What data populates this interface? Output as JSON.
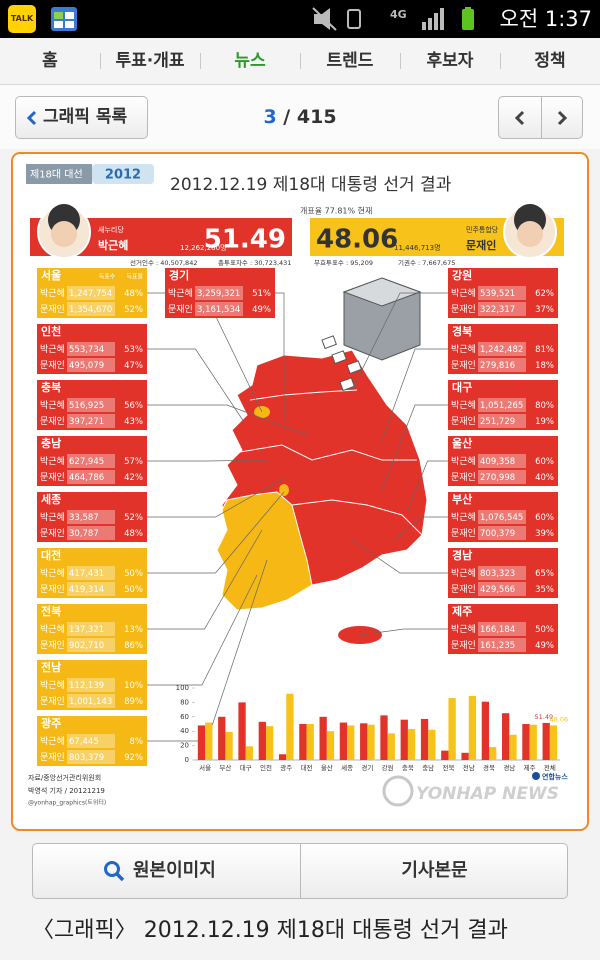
{
  "status_bar": {
    "app_icon": "TALK",
    "network": "4G",
    "time": "오전 1:37"
  },
  "tabs": [
    "홈",
    "투표·개표",
    "뉴스",
    "트렌드",
    "후보자",
    "정책"
  ],
  "active_tab": 2,
  "nav": {
    "back": "그래픽 목록",
    "current": 3,
    "separator": "/",
    "total": 415
  },
  "infographic": {
    "tag": "제18대 대선",
    "logo": "2012",
    "title": "2012.12.19 제18대 대통령 선거 결과",
    "count_rate": "개표율 77.81% 현재",
    "left_candidate": {
      "party": "새누리당",
      "name": "박근혜",
      "votes": "12,262,280명",
      "percent": "51.49",
      "color": "#e2332a"
    },
    "right_candidate": {
      "party": "민주통합당",
      "name": "문재인",
      "votes": "11,446,713명",
      "percent": "48.06",
      "color": "#f7c21a"
    },
    "stats": [
      "선거인수 : 40,507,842",
      "총투표자수 : 30,723,431",
      "무효투표수 : 95,209",
      "기권수 : 7,667,675"
    ],
    "column_heads": [
      "득표수",
      "득표율"
    ],
    "regions": [
      {
        "name": "서울",
        "color": "#f5b814",
        "rows": [
          {
            "candidate": "박근혜",
            "votes": "1,247,754",
            "pct": "48%"
          },
          {
            "candidate": "문재인",
            "votes": "1,354,670",
            "pct": "52%"
          }
        ]
      },
      {
        "name": "인천",
        "color": "#e2332a",
        "rows": [
          {
            "candidate": "박근혜",
            "votes": "553,734",
            "pct": "53%"
          },
          {
            "candidate": "문재인",
            "votes": "495,079",
            "pct": "47%"
          }
        ]
      },
      {
        "name": "충북",
        "color": "#e2332a",
        "rows": [
          {
            "candidate": "박근혜",
            "votes": "516,925",
            "pct": "56%"
          },
          {
            "candidate": "문재인",
            "votes": "397,271",
            "pct": "43%"
          }
        ]
      },
      {
        "name": "충남",
        "color": "#e2332a",
        "rows": [
          {
            "candidate": "박근혜",
            "votes": "627,945",
            "pct": "57%"
          },
          {
            "candidate": "문재인",
            "votes": "464,786",
            "pct": "42%"
          }
        ]
      },
      {
        "name": "세종",
        "color": "#e2332a",
        "rows": [
          {
            "candidate": "박근혜",
            "votes": "33,587",
            "pct": "52%"
          },
          {
            "candidate": "문재인",
            "votes": "30,787",
            "pct": "48%"
          }
        ]
      },
      {
        "name": "대전",
        "color": "#f5b814",
        "rows": [
          {
            "candidate": "박근혜",
            "votes": "417,431",
            "pct": "50%"
          },
          {
            "candidate": "문재인",
            "votes": "419,314",
            "pct": "50%"
          }
        ]
      },
      {
        "name": "전북",
        "color": "#f5b814",
        "rows": [
          {
            "candidate": "박근혜",
            "votes": "137,321",
            "pct": "13%"
          },
          {
            "candidate": "문재인",
            "votes": "902,710",
            "pct": "86%"
          }
        ]
      },
      {
        "name": "전남",
        "color": "#f5b814",
        "rows": [
          {
            "candidate": "박근혜",
            "votes": "112,139",
            "pct": "10%"
          },
          {
            "candidate": "문재인",
            "votes": "1,001,143",
            "pct": "89%"
          }
        ]
      },
      {
        "name": "광주",
        "color": "#f5b814",
        "rows": [
          {
            "candidate": "박근혜",
            "votes": "67,445",
            "pct": "8%"
          },
          {
            "candidate": "문재인",
            "votes": "803,379",
            "pct": "92%"
          }
        ]
      },
      {
        "name": "경기",
        "color": "#e2332a",
        "rows": [
          {
            "candidate": "박근혜",
            "votes": "3,259,321",
            "pct": "51%"
          },
          {
            "candidate": "문재인",
            "votes": "3,161,534",
            "pct": "49%"
          }
        ]
      },
      {
        "name": "강원",
        "color": "#e2332a",
        "rows": [
          {
            "candidate": "박근혜",
            "votes": "539,521",
            "pct": "62%"
          },
          {
            "candidate": "문재인",
            "votes": "322,317",
            "pct": "37%"
          }
        ]
      },
      {
        "name": "경북",
        "color": "#e2332a",
        "rows": [
          {
            "candidate": "박근혜",
            "votes": "1,242,482",
            "pct": "81%"
          },
          {
            "candidate": "문재인",
            "votes": "279,816",
            "pct": "18%"
          }
        ]
      },
      {
        "name": "대구",
        "color": "#e2332a",
        "rows": [
          {
            "candidate": "박근혜",
            "votes": "1,051,265",
            "pct": "80%"
          },
          {
            "candidate": "문재인",
            "votes": "251,729",
            "pct": "19%"
          }
        ]
      },
      {
        "name": "울산",
        "color": "#e2332a",
        "rows": [
          {
            "candidate": "박근혜",
            "votes": "409,358",
            "pct": "60%"
          },
          {
            "candidate": "문재인",
            "votes": "270,998",
            "pct": "40%"
          }
        ]
      },
      {
        "name": "부산",
        "color": "#e2332a",
        "rows": [
          {
            "candidate": "박근혜",
            "votes": "1,076,545",
            "pct": "60%"
          },
          {
            "candidate": "문재인",
            "votes": "700,379",
            "pct": "39%"
          }
        ]
      },
      {
        "name": "경남",
        "color": "#e2332a",
        "rows": [
          {
            "candidate": "박근혜",
            "votes": "803,323",
            "pct": "65%"
          },
          {
            "candidate": "문재인",
            "votes": "429,566",
            "pct": "35%"
          }
        ]
      },
      {
        "name": "제주",
        "color": "#e2332a",
        "rows": [
          {
            "candidate": "박근혜",
            "votes": "166,184",
            "pct": "50%"
          },
          {
            "candidate": "문재인",
            "votes": "161,235",
            "pct": "49%"
          }
        ]
      }
    ],
    "chart_data": {
      "type": "bar",
      "categories": [
        "서울",
        "부산",
        "대구",
        "인천",
        "광주",
        "대전",
        "울산",
        "세종",
        "경기",
        "강원",
        "충북",
        "충남",
        "전북",
        "전남",
        "경북",
        "경남",
        "제주",
        "전체"
      ],
      "series": [
        {
          "name": "박근혜",
          "color": "#e2332a",
          "values": [
            48,
            60,
            80,
            53,
            8,
            50,
            60,
            52,
            51,
            62,
            56,
            57,
            13,
            10,
            81,
            65,
            50,
            51.49
          ]
        },
        {
          "name": "문재인",
          "color": "#f7c21a",
          "values": [
            52,
            39,
            19,
            47,
            92,
            50,
            40,
            48,
            49,
            37,
            43,
            42,
            86,
            89,
            18,
            35,
            49,
            48.06
          ]
        }
      ],
      "ylim": [
        0,
        100
      ],
      "yticks": [
        0,
        20,
        40,
        60,
        80,
        100
      ]
    },
    "source": "자료/중앙선거관리위원회",
    "byline": "박영석 기자 / 20121219",
    "twitter": "@yonhap_graphics(트위터)",
    "brand": "연합뉴스",
    "watermark": "YONHAP NEWS"
  },
  "buttons": [
    "원본이미지",
    "기사본문"
  ],
  "headline": "〈그래픽〉 2012.12.19 제18대 대통령 선거 결과"
}
